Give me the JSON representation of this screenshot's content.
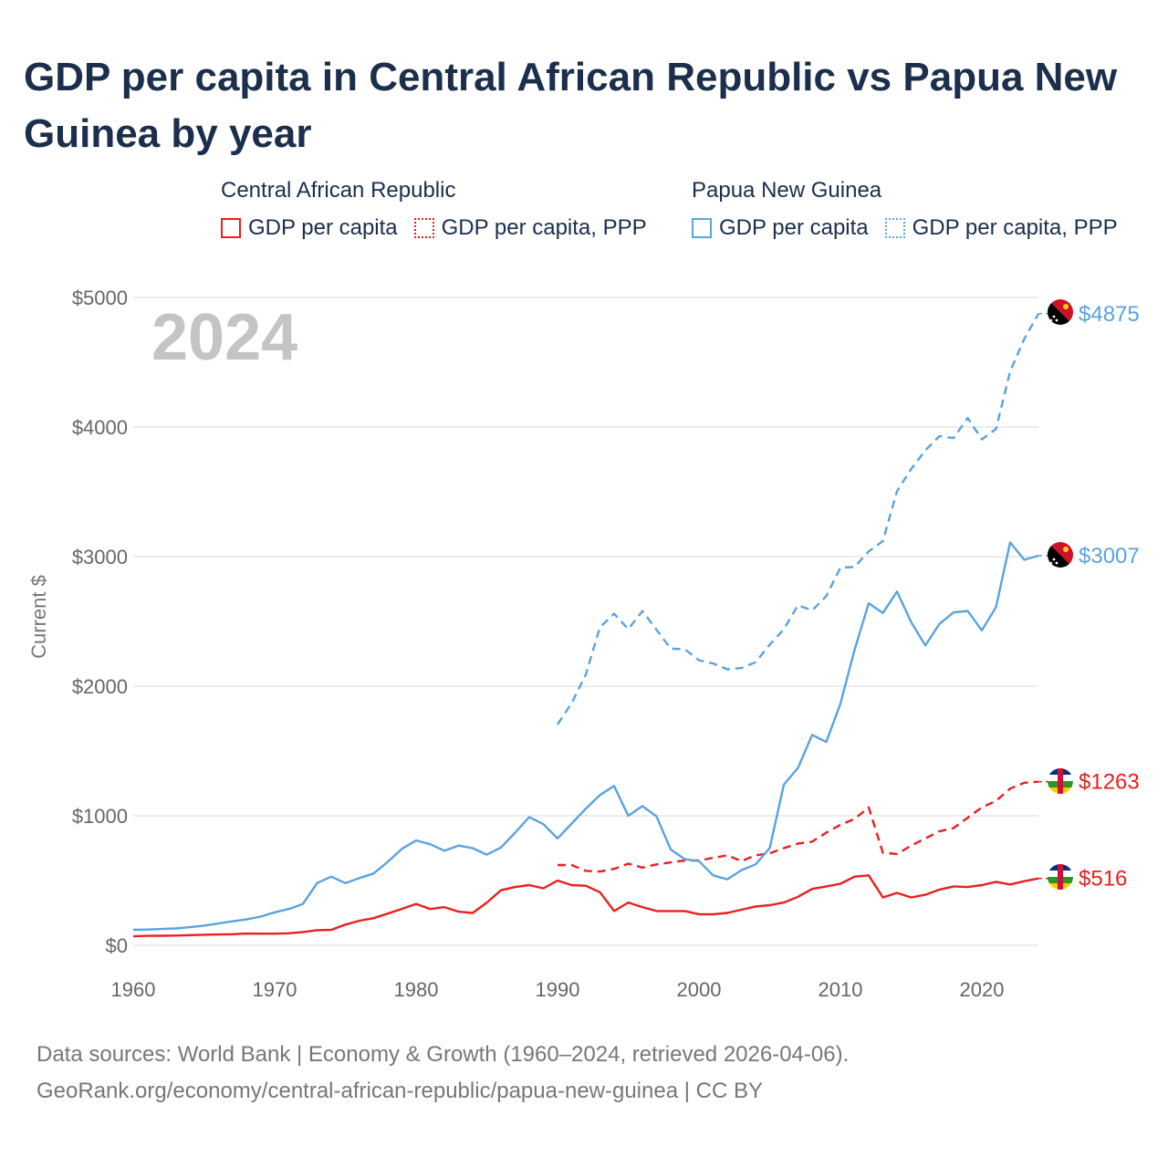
{
  "title": "GDP per capita in Central African Republic vs Papua New Guinea by year",
  "legend": {
    "groups": [
      {
        "country": "Central African Republic",
        "items": [
          "GDP per capita",
          "GDP per capita, PPP"
        ]
      },
      {
        "country": "Papua New Guinea",
        "items": [
          "GDP per capita",
          "GDP per capita, PPP"
        ]
      }
    ]
  },
  "year_label": "2024",
  "footer": {
    "line1": "Data sources: World Bank | Economy & Growth (1960–2024, retrieved 2026-04-06).",
    "line2": "GeoRank.org/economy/central-african-republic/papua-new-guinea | CC BY"
  },
  "colors": {
    "car": "#e8201e",
    "png": "#5aa3e0",
    "title": "#1b2e4b",
    "axis_text": "#666666",
    "grid": "#e6e6e6"
  },
  "chart_data": {
    "type": "line",
    "title": "GDP per capita in Central African Republic vs Papua New Guinea by year",
    "xlabel": "",
    "ylabel": "Current $",
    "xlim": [
      1960,
      2024
    ],
    "ylim": [
      0,
      5000
    ],
    "x_ticks": [
      1960,
      1970,
      1980,
      1990,
      2000,
      2010,
      2020
    ],
    "x_tick_labels": [
      "1960",
      "1970",
      "1980",
      "1990",
      "2000",
      "2010",
      "2020"
    ],
    "y_ticks": [
      0,
      1000,
      2000,
      3000,
      4000,
      5000
    ],
    "y_tick_labels": [
      "$0",
      "$1000",
      "$2000",
      "$3000",
      "$4000",
      "$5000"
    ],
    "grid": true,
    "series": [
      {
        "name": "Central African Republic — GDP per capita",
        "country": "car",
        "style": "solid",
        "start_year": 1960,
        "end_label": "$516",
        "values": [
          70,
          73,
          74,
          75,
          79,
          82,
          84,
          86,
          91,
          90,
          90,
          93,
          103,
          117,
          120,
          160,
          190,
          210,
          245,
          282,
          320,
          280,
          295,
          260,
          250,
          330,
          425,
          450,
          465,
          440,
          500,
          465,
          460,
          410,
          265,
          330,
          295,
          265,
          265,
          265,
          240,
          240,
          250,
          275,
          300,
          310,
          330,
          375,
          435,
          455,
          475,
          530,
          540,
          370,
          405,
          370,
          390,
          430,
          455,
          450,
          465,
          490,
          470,
          495,
          516
        ]
      },
      {
        "name": "Central African Republic — GDP per capita, PPP",
        "country": "car",
        "style": "dashed",
        "start_year": 1990,
        "end_label": "$1263",
        "values": [
          620,
          620,
          575,
          570,
          590,
          630,
          600,
          625,
          640,
          655,
          655,
          675,
          695,
          650,
          695,
          710,
          750,
          785,
          800,
          870,
          930,
          975,
          1065,
          715,
          705,
          770,
          825,
          880,
          905,
          985,
          1065,
          1115,
          1210,
          1255,
          1263
        ]
      },
      {
        "name": "Papua New Guinea — GDP per capita",
        "country": "png",
        "style": "solid",
        "start_year": 1960,
        "end_label": "$3007",
        "values": [
          120,
          122,
          126,
          130,
          140,
          152,
          168,
          185,
          200,
          222,
          255,
          280,
          320,
          480,
          530,
          480,
          520,
          555,
          645,
          745,
          810,
          780,
          730,
          770,
          750,
          700,
          755,
          870,
          990,
          935,
          825,
          940,
          1055,
          1160,
          1230,
          1000,
          1075,
          995,
          740,
          665,
          650,
          540,
          510,
          580,
          625,
          750,
          1240,
          1370,
          1625,
          1570,
          1865,
          2280,
          2640,
          2565,
          2730,
          2495,
          2315,
          2480,
          2570,
          2580,
          2430,
          2610,
          3110,
          2975,
          3007
        ]
      },
      {
        "name": "Papua New Guinea — GDP per capita, PPP",
        "country": "png",
        "style": "dashed",
        "start_year": 1990,
        "end_label": "$4875",
        "values": [
          1705,
          1870,
          2090,
          2455,
          2560,
          2440,
          2580,
          2435,
          2290,
          2285,
          2200,
          2175,
          2130,
          2140,
          2185,
          2320,
          2440,
          2625,
          2585,
          2695,
          2915,
          2920,
          3040,
          3120,
          3505,
          3675,
          3820,
          3930,
          3915,
          4070,
          3905,
          3985,
          4430,
          4680,
          4875
        ]
      }
    ]
  }
}
